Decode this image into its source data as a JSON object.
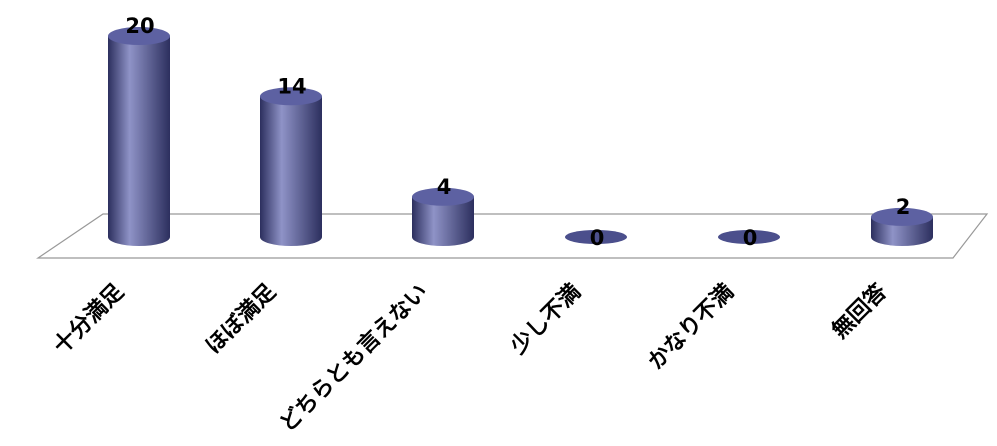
{
  "chart_data": {
    "type": "bar",
    "style": "3d-cylinder",
    "categories": [
      "十分満足",
      "ほぼ満足",
      "どちらとも言えない",
      "少し不満",
      "かなり不満",
      "無回答"
    ],
    "values": [
      20,
      14,
      4,
      0,
      0,
      2
    ],
    "title": "",
    "xlabel": "",
    "ylabel": "",
    "ylim": [
      0,
      20
    ],
    "grid": false,
    "data_labels": true,
    "colors": {
      "bar": "#4b4f8c",
      "bar_light": "#8f93c7",
      "bar_dark": "#2c2f5e",
      "bar_top": "#5d61a2",
      "floor_stroke": "#999999",
      "text": "#000000"
    }
  }
}
